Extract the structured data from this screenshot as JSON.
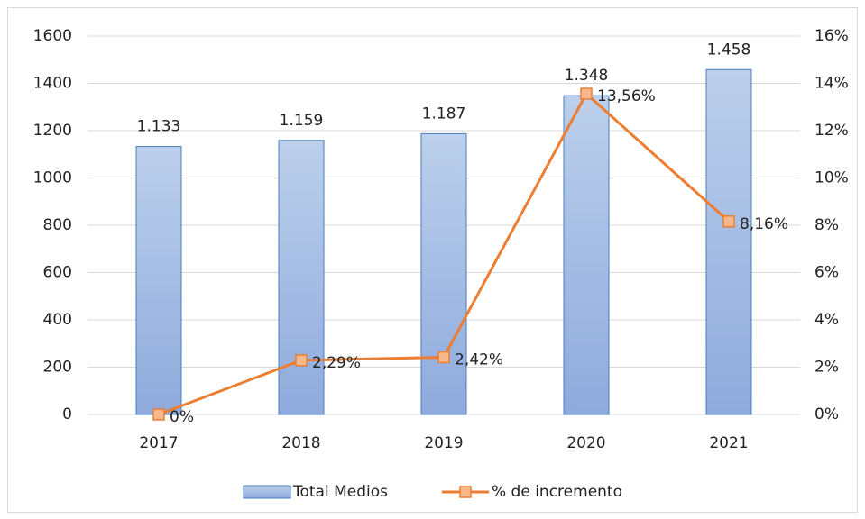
{
  "chart_data": {
    "type": "combo",
    "categories": [
      "2017",
      "2018",
      "2019",
      "2020",
      "2021"
    ],
    "series": [
      {
        "name": "Total Medios",
        "type": "bar",
        "color": "#8faadc",
        "values": [
          1133,
          1159,
          1187,
          1348,
          1458
        ],
        "value_labels": [
          "1.133",
          "1.159",
          "1.187",
          "1.348",
          "1.458"
        ]
      },
      {
        "name": "% de incremento",
        "type": "line",
        "axis": "y2",
        "color": "#ed7d31",
        "values": [
          0,
          2.29,
          2.42,
          13.56,
          8.16
        ],
        "value_labels": [
          "0%",
          "2,29%",
          "2,42%",
          "13,56%",
          "8,16%"
        ]
      }
    ],
    "ylim": [
      0,
      1600
    ],
    "yticks": [
      0,
      200,
      400,
      600,
      800,
      1000,
      1200,
      1400,
      1600
    ],
    "y2lim": [
      0,
      16
    ],
    "y2ticks": [
      {
        "value": 0,
        "label": "0%"
      },
      {
        "value": 2,
        "label": "2%"
      },
      {
        "value": 4,
        "label": "4%"
      },
      {
        "value": 6,
        "label": "6%"
      },
      {
        "value": 8,
        "label": "8%"
      },
      {
        "value": 10,
        "label": "10%"
      },
      {
        "value": 12,
        "label": "12%"
      },
      {
        "value": 14,
        "label": "14%"
      },
      {
        "value": 16,
        "label": "16%"
      }
    ],
    "grid": true,
    "legend": "bottom"
  }
}
